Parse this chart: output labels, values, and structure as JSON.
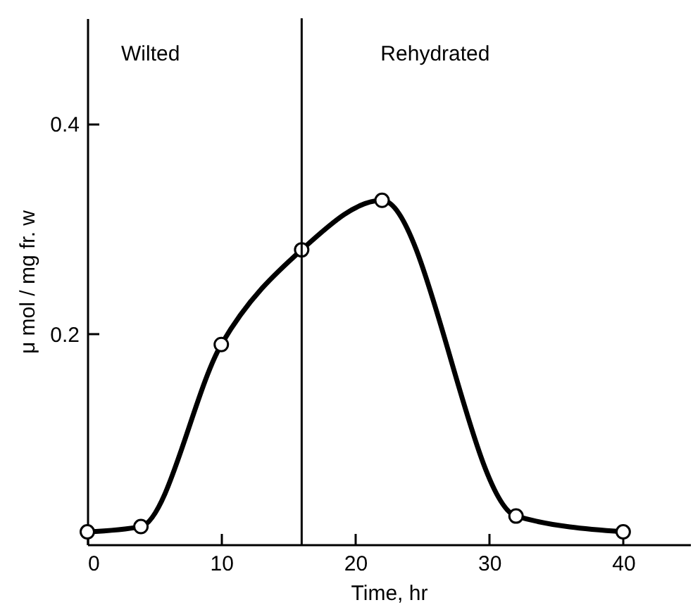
{
  "chart_data": {
    "type": "line",
    "xlabel": "Time, hr",
    "ylabel": "μ mol / mg fr. w",
    "x": [
      0,
      4,
      10,
      16,
      22,
      32,
      40
    ],
    "series": [
      {
        "color": "#000000",
        "values": [
          0.012,
          0.017,
          0.19,
          0.28,
          0.327,
          0.027,
          0.012
        ]
      }
    ],
    "xlim": [
      0,
      45
    ],
    "xticks": [
      0,
      10,
      20,
      30,
      40
    ],
    "ylim": [
      0,
      0.5
    ],
    "yticks": [
      0.2,
      0.4
    ],
    "ref_lines": [
      {
        "axis": "x",
        "value": 16
      }
    ],
    "annotations": [
      "Wilted",
      "Rehydrated"
    ],
    "marker": "circle",
    "line_style": "solid",
    "grid": false
  }
}
